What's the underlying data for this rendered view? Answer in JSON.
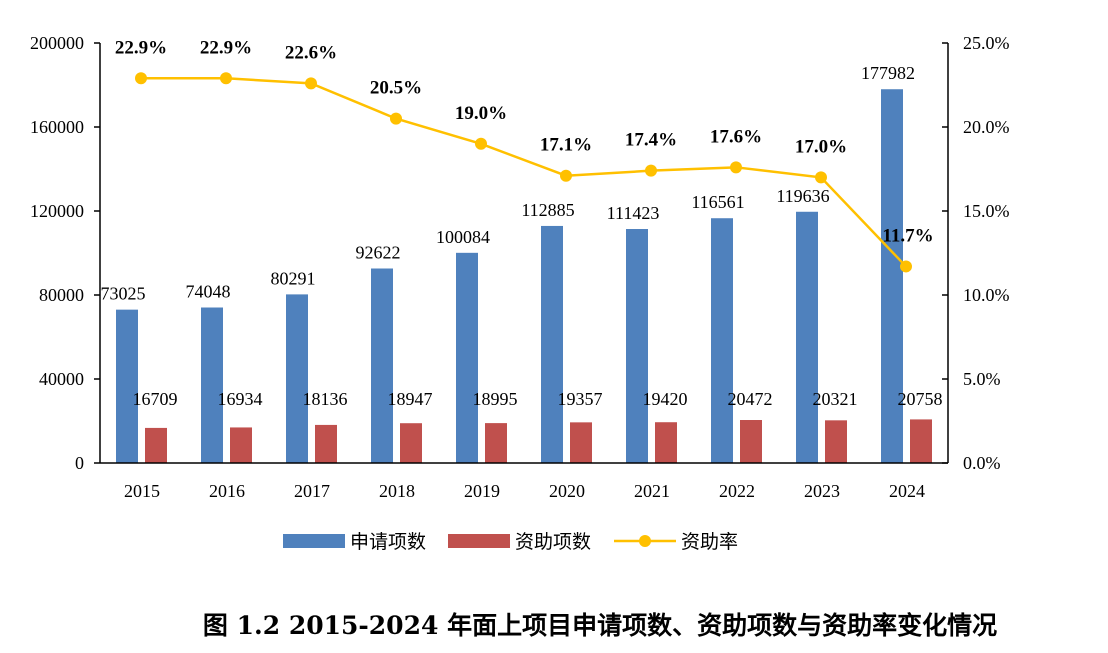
{
  "chart_data": {
    "type": "bar",
    "title": "图 1.2  2015-2024 年面上项目申请项数、资助项数与资助率变化情况",
    "categories": [
      "2015",
      "2016",
      "2017",
      "2018",
      "2019",
      "2020",
      "2021",
      "2022",
      "2023",
      "2024"
    ],
    "series": [
      {
        "name": "申请项数",
        "type": "bar",
        "axis": "left",
        "color": "#4F81BD",
        "values": [
          73025,
          74048,
          80291,
          92622,
          100084,
          112885,
          111423,
          116561,
          119636,
          177982
        ]
      },
      {
        "name": "资助项数",
        "type": "bar",
        "axis": "left",
        "color": "#C0504D",
        "values": [
          16709,
          16934,
          18136,
          18947,
          18995,
          19357,
          19420,
          20472,
          20321,
          20758
        ]
      },
      {
        "name": "资助率",
        "type": "line",
        "axis": "right",
        "color": "#FFC000",
        "values": [
          22.9,
          22.9,
          22.6,
          20.5,
          19.0,
          17.1,
          17.4,
          17.6,
          17.0,
          11.7
        ],
        "labels": [
          "22.9%",
          "22.9%",
          "22.6%",
          "20.5%",
          "19.0%",
          "17.1%",
          "17.4%",
          "17.6%",
          "17.0%",
          "11.7%"
        ]
      }
    ],
    "ylim": [
      0,
      200000
    ],
    "yticks": [
      "0",
      "40000",
      "80000",
      "120000",
      "160000",
      "200000"
    ],
    "y2lim": [
      0,
      25
    ],
    "y2ticks": [
      "0.0%",
      "5.0%",
      "10.0%",
      "15.0%",
      "20.0%",
      "25.0%"
    ],
    "legend_position": "bottom",
    "grid": false
  }
}
